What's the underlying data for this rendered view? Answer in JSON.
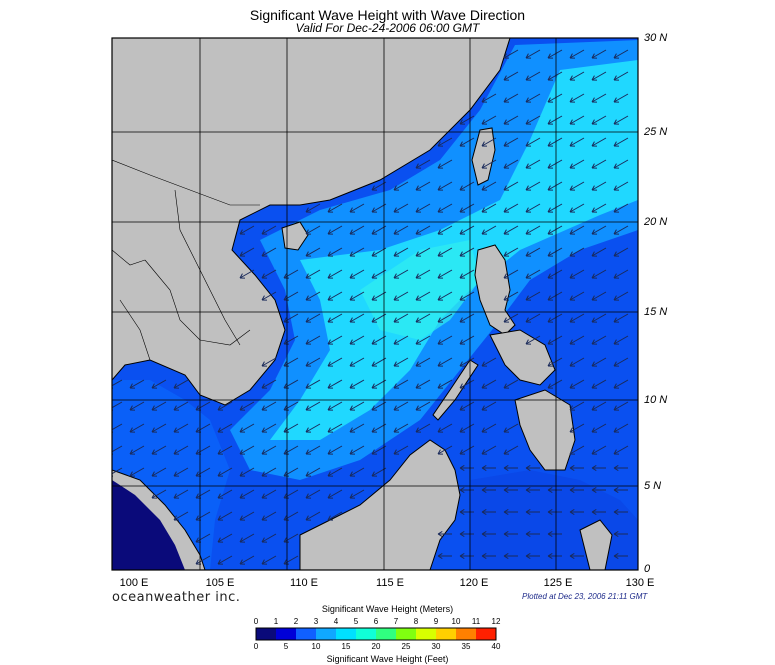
{
  "header": {
    "title": "Significant Wave Height with Wave Direction",
    "subtitle": "Valid For Dec-24-2006 06:00 GMT"
  },
  "axes": {
    "lon_labels": [
      "100 E",
      "105 E",
      "110 E",
      "115 E",
      "120 E",
      "125 E",
      "130 E"
    ],
    "lat_labels": [
      "30 N",
      "25 N",
      "20 N",
      "15 N",
      "10 N",
      "5 N",
      "0"
    ]
  },
  "footer": {
    "brand": "oceanweather inc.",
    "plotted": "Plotted at Dec 23, 2006 21:11 GMT"
  },
  "legend": {
    "meters_title": "Significant Wave Height (Meters)",
    "feet_title": "Significant Wave Height (Feet)",
    "meters_ticks": [
      "0",
      "1",
      "2",
      "3",
      "4",
      "5",
      "6",
      "7",
      "8",
      "9",
      "10",
      "11",
      "12"
    ],
    "feet_ticks": [
      "0",
      "5",
      "10",
      "15",
      "20",
      "25",
      "30",
      "35",
      "40"
    ],
    "colors": [
      "#0a0a7a",
      "#0000d8",
      "#1060ff",
      "#10a8ff",
      "#00e0ff",
      "#10ffd8",
      "#30ff80",
      "#80ff10",
      "#d8ff00",
      "#ffd000",
      "#ff8000",
      "#ff2000"
    ]
  },
  "colors": {
    "land": "#c0c0c0",
    "deep_blue": "#0a50f0",
    "mid_blue": "#1090ff",
    "cyan": "#20d8ff",
    "grid": "#000000"
  },
  "icons": [
    "wave-direction-arrow"
  ]
}
